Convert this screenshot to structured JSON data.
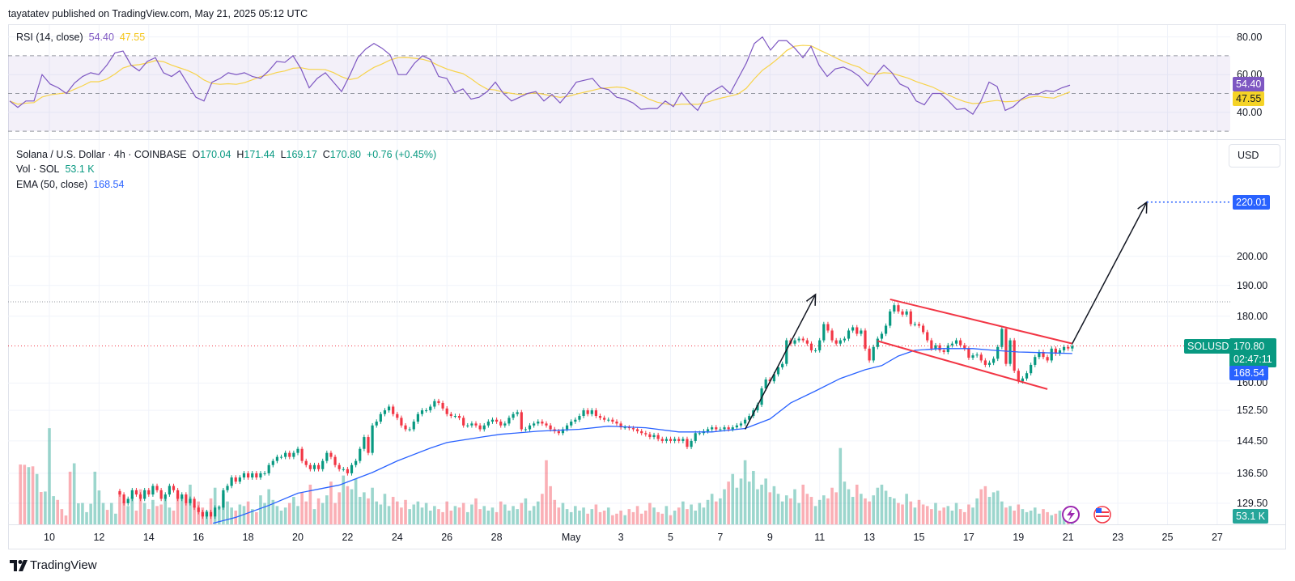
{
  "header": {
    "published": "tayatatev published on TradingView.com, May 21, 2025 05:12 UTC"
  },
  "rsi_legend": {
    "label": "RSI (14, close)",
    "value": "54.40",
    "ma_value": "47.55"
  },
  "legend": {
    "symbol": "Solana / U.S. Dollar · 4h · COINBASE",
    "o_label": "O",
    "o": "170.04",
    "h_label": "H",
    "h": "171.44",
    "l_label": "L",
    "l": "169.17",
    "c_label": "C",
    "c": "170.80",
    "change": "+0.76 (+0.45%)",
    "vol_label": "Vol · SOL",
    "vol": "53.1 K",
    "ema_label": "EMA (50, close)",
    "ema": "168.54"
  },
  "currency_button": "USD",
  "price_axis": {
    "ticks": [
      "200.00",
      "190.00",
      "180.00",
      "160.00",
      "152.50",
      "144.50",
      "136.50",
      "129.50"
    ],
    "target_badge": "220.01",
    "last_price_badge": "170.80",
    "countdown": "02:47:11",
    "ema_badge": "168.54",
    "volume_badge": "53.1 K",
    "symbol_tag": "SOLUSD"
  },
  "rsi_axis": {
    "ticks": [
      "80.00",
      "60.00",
      "40.00"
    ],
    "rsi_badge": "54.40",
    "ma_badge": "47.55"
  },
  "time_axis": {
    "ticks": [
      "10",
      "12",
      "14",
      "16",
      "18",
      "20",
      "22",
      "24",
      "26",
      "28",
      "May",
      "3",
      "5",
      "7",
      "9",
      "11",
      "13",
      "15",
      "17",
      "19",
      "21",
      "23",
      "25",
      "27"
    ]
  },
  "branding": "TradingView",
  "colors": {
    "up": "#089981",
    "down": "#f23645",
    "ema": "#2962ff",
    "rsi": "#7e57c2",
    "rsi_ma": "#f5c518",
    "channel": "#f23645",
    "arrow": "#131722",
    "target_line": "#2962ff"
  },
  "chart_data": {
    "type": "candlestick",
    "symbol": "SOLUSD",
    "interval": "4h",
    "y_scale": "log",
    "closes": [
      131.5,
      129.5,
      130.5,
      132.5,
      131.5,
      130.5,
      132.5,
      131.5,
      133.5,
      132.5,
      130.5,
      131.5,
      133.5,
      132.5,
      130.5,
      131.5,
      129.5,
      130.5,
      128.5,
      127.5,
      126.5,
      127.5,
      126.5,
      128.5,
      128.5,
      132.5,
      133.5,
      135.5,
      134.5,
      135.5,
      136.5,
      135.5,
      136.5,
      135.5,
      136.5,
      136.5,
      138.5,
      139.5,
      140.5,
      140.5,
      141.5,
      140.5,
      141.5,
      142.5,
      139.5,
      138.5,
      137.5,
      138.5,
      137.5,
      139.5,
      141.5,
      140.5,
      138.5,
      137.5,
      137.5,
      136.5,
      138.5,
      139.5,
      142.5,
      145.5,
      141.5,
      148.5,
      149.5,
      151.5,
      152.5,
      153.5,
      151.5,
      150.5,
      148.5,
      147.5,
      147.5,
      149.5,
      151.5,
      152.5,
      152.5,
      153.5,
      155,
      154.5,
      153,
      151.5,
      151,
      151,
      150.5,
      148.5,
      148.5,
      149,
      148.5,
      147.5,
      148.5,
      149.5,
      150,
      149.5,
      148.5,
      149,
      150.5,
      151.5,
      152,
      147.5,
      147.5,
      148.5,
      149,
      149.5,
      149,
      148.5,
      147.5,
      147,
      146.5,
      147.5,
      148.5,
      149.5,
      150,
      151,
      152.5,
      151.5,
      152.5,
      151,
      150.5,
      150,
      150,
      149.5,
      149,
      148,
      148,
      147.8,
      147.5,
      147,
      146.5,
      146.2,
      145.5,
      146,
      145,
      144.5,
      145,
      144.5,
      145,
      144.5,
      145,
      143,
      144.5,
      146.5,
      146.5,
      147,
      147.5,
      148,
      147.5,
      147.5,
      148,
      147.5,
      148,
      148.5,
      149,
      150,
      151,
      152.5,
      154,
      158.5,
      161,
      160.5,
      162.5,
      164.5,
      165.5,
      172.5,
      171.5,
      172.5,
      173,
      172.5,
      171.5,
      169.5,
      169.5,
      172.5,
      177.5,
      175.5,
      172.5,
      171.5,
      172.5,
      173,
      175.5,
      176.5,
      174.5,
      175.5,
      170,
      166.5,
      170.5,
      173,
      174.5,
      177,
      181.5,
      183.5,
      181.5,
      180.5,
      181.5,
      177.5,
      177.5,
      177,
      175,
      172.5,
      170,
      171,
      169.5,
      169,
      171,
      171.5,
      172.5,
      171,
      170,
      167.3,
      168,
      168.2,
      166.5,
      165.2,
      165.8,
      167,
      170.5,
      176,
      165.5,
      172.5,
      163.5,
      160.5,
      161.3,
      162.8,
      165.2,
      167.5,
      169,
      167.5,
      166.5,
      170,
      168.5,
      169.5,
      170.5,
      170.04,
      170.8
    ],
    "last_candle": {
      "open": 170.04,
      "high": 171.44,
      "low": 169.17,
      "close": 170.8
    },
    "volume_k_pre": [
      [
        392,
        0
      ],
      [
        390,
        0
      ],
      [
        375,
        1
      ],
      [
        380,
        0
      ],
      [
        330,
        1
      ],
      [
        212,
        0
      ],
      [
        215,
        1
      ],
      [
        630,
        1
      ],
      [
        185,
        1
      ],
      [
        160,
        0
      ],
      [
        100,
        0
      ],
      [
        58,
        0
      ],
      [
        345,
        0
      ],
      [
        400,
        1
      ],
      [
        138,
        1
      ],
      [
        140,
        1
      ],
      [
        80,
        1
      ],
      [
        135,
        1
      ],
      [
        345,
        1
      ],
      [
        222,
        1
      ],
      [
        140,
        1
      ],
      [
        95,
        0
      ],
      [
        140,
        1
      ],
      [
        70,
        1
      ]
    ],
    "volume_k": [
      210,
      150,
      120,
      180,
      90,
      230,
      140,
      100,
      160,
      120,
      130,
      170,
      110,
      90,
      200,
      180,
      140,
      260,
      120,
      150,
      110,
      90,
      170,
      240,
      120,
      200,
      150,
      110,
      90,
      130,
      120,
      150,
      100,
      80,
      190,
      140,
      230,
      160,
      120,
      90,
      110,
      140,
      180,
      120,
      210,
      150,
      260,
      100,
      170,
      140,
      190,
      280,
      140,
      210,
      320,
      250,
      230,
      300,
      180,
      210,
      170,
      240,
      150,
      130,
      200,
      120,
      180,
      150,
      110,
      160,
      100,
      130,
      150,
      110,
      140,
      90,
      120,
      100,
      80,
      150,
      90,
      120,
      110,
      140,
      80,
      130,
      170,
      100,
      120,
      90,
      110,
      80,
      150,
      130,
      90,
      120,
      100,
      140,
      170,
      90,
      120,
      150,
      200,
      420,
      250,
      160,
      110,
      140,
      100,
      80,
      120,
      90,
      110,
      70,
      100,
      130,
      80,
      90,
      110,
      60,
      70,
      90,
      60,
      100,
      80,
      120,
      70,
      90,
      140,
      110,
      80,
      70,
      120,
      60,
      90,
      110,
      150,
      100,
      130,
      90,
      140,
      110,
      160,
      200,
      150,
      170,
      230,
      280,
      330,
      240,
      300,
      420,
      280,
      350,
      230,
      260,
      300,
      210,
      250,
      200,
      150,
      190,
      170,
      230,
      140,
      260,
      200,
      180,
      120,
      160,
      190,
      170,
      240,
      210,
      500,
      280,
      230,
      180,
      260,
      200,
      170,
      150,
      190,
      240,
      260,
      220,
      180,
      170,
      140,
      130,
      200,
      150,
      110,
      160,
      130,
      120,
      100,
      140,
      90,
      110,
      120,
      90,
      140,
      100,
      80,
      130,
      110,
      170,
      230,
      250,
      180,
      210,
      220,
      150,
      110,
      120,
      90,
      130,
      100,
      80,
      90,
      110,
      70,
      100,
      80,
      60,
      70,
      90,
      80,
      65,
      53.1
    ],
    "ema50": [
      [
        "04-16 14",
        125.0
      ],
      [
        "04-17 12",
        126.3
      ],
      [
        "04-18 20",
        129.0
      ],
      [
        "04-20 00",
        131.8
      ],
      [
        "04-21 16",
        133.7
      ],
      [
        "04-23 00",
        136.7
      ],
      [
        "04-24 00",
        139.5
      ],
      [
        "04-25 08",
        142.7
      ],
      [
        "04-26 00",
        144.1
      ],
      [
        "04-27 12",
        145.6
      ],
      [
        "04-28 04",
        146.2
      ],
      [
        "04-29 16",
        147.0
      ],
      [
        "05-01 08",
        147.5
      ],
      [
        "05-02 12",
        148.3
      ],
      [
        "05-04 00",
        147.9
      ],
      [
        "05-05 08",
        146.8
      ],
      [
        "05-06 16",
        146.8
      ],
      [
        "05-08 00",
        147.7
      ],
      [
        "05-09 00",
        150.2
      ],
      [
        "05-09 20",
        154.5
      ],
      [
        "05-10 20",
        157.8
      ],
      [
        "05-11 20",
        161.3
      ],
      [
        "05-12 20",
        163.8
      ],
      [
        "05-13 12",
        165.0
      ],
      [
        "05-14 04",
        167.8
      ],
      [
        "05-14 20",
        169.5
      ],
      [
        "05-15 20",
        170.0
      ],
      [
        "05-17 04",
        170.0
      ],
      [
        "05-18 00",
        169.5
      ],
      [
        "05-19 00",
        169.0
      ],
      [
        "05-21 04",
        168.54
      ]
    ],
    "rsi": [
      46,
      42.6,
      46,
      46,
      60,
      55,
      53,
      50,
      55.5,
      59,
      61,
      60,
      65,
      71.5,
      72.5,
      65,
      62,
      67,
      69,
      61,
      59,
      62,
      55,
      48,
      46,
      56,
      58,
      61,
      60,
      61,
      59,
      58,
      62,
      67,
      66.5,
      70,
      63,
      53,
      58,
      61,
      56,
      51,
      59.5,
      69,
      73.6,
      76.5,
      74,
      70.5,
      60,
      60,
      66,
      70,
      68,
      59,
      58,
      50.5,
      52.4,
      47,
      48,
      51,
      56,
      50,
      46,
      48,
      50,
      51,
      46,
      49.5,
      45,
      50,
      56,
      57,
      58,
      53,
      52,
      48,
      47,
      45,
      41.6,
      42,
      42,
      46,
      43,
      50.5,
      45,
      41,
      48.5,
      51.5,
      54,
      50,
      58,
      66,
      76.5,
      80,
      73,
      78,
      78,
      74,
      69,
      75,
      65,
      59,
      63,
      64,
      62,
      59,
      54,
      60,
      65,
      61,
      55,
      53,
      46,
      44,
      50,
      50,
      46,
      41.5,
      42,
      39,
      46,
      56,
      53.7,
      41,
      43,
      47,
      49.5,
      49.5,
      51.5,
      51,
      53,
      54.4
    ],
    "rsi_levels": [
      70,
      50,
      30
    ],
    "annotations": {
      "resistance_line": 184.6,
      "target_line": 220.01,
      "channel_upper": [
        [
          "05-13 20",
          185.4
        ],
        [
          "05-21 04",
          171.5
        ]
      ],
      "channel_lower": [
        [
          "05-13 08",
          172.3
        ],
        [
          "05-20 04",
          158.3
        ]
      ],
      "arrow_impulse": [
        [
          "05-08 00",
          147.5
        ],
        [
          "05-10 20",
          187.0
        ]
      ],
      "arrow_projection": [
        [
          "05-21 04",
          171.5
        ],
        [
          "05-24 04",
          220.01
        ]
      ]
    }
  }
}
